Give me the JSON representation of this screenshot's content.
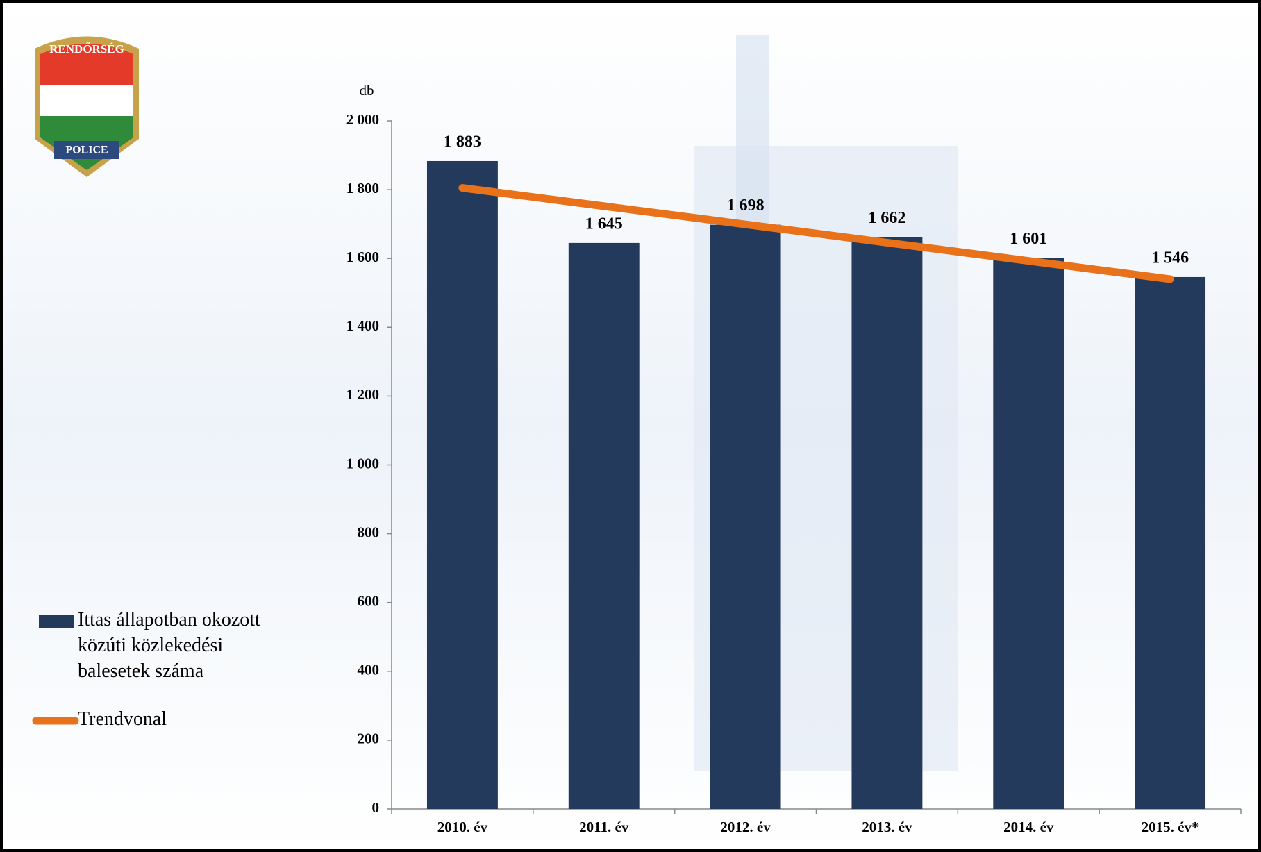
{
  "logo": {
    "top": "RENDŐRSÉG",
    "bottom": "POLICE"
  },
  "chart_data": {
    "type": "bar",
    "y_unit": "db",
    "categories": [
      "2010. év",
      "2011. év",
      "2012. év",
      "2013. év",
      "2014. év",
      "2015. év*"
    ],
    "series": [
      {
        "name": "Ittas állapotban okozott közúti közlekedési balesetek száma",
        "color": "#243a5c",
        "values": [
          1883,
          1645,
          1698,
          1662,
          1601,
          1546
        ],
        "value_labels": [
          "1 883",
          "1 645",
          "1 698",
          "1 662",
          "1 601",
          "1 546"
        ]
      },
      {
        "name": "Trendvonal",
        "type": "line",
        "color": "#e8711a",
        "values": [
          1805,
          1752,
          1699,
          1646,
          1593,
          1540
        ]
      }
    ],
    "ylim": [
      0,
      2000
    ],
    "yticks": [
      {
        "value": 0,
        "label": "0"
      },
      {
        "value": 200,
        "label": "200"
      },
      {
        "value": 400,
        "label": "400"
      },
      {
        "value": 600,
        "label": "600"
      },
      {
        "value": 800,
        "label": "800"
      },
      {
        "value": 1000,
        "label": "1 000"
      },
      {
        "value": 1200,
        "label": "1 200"
      },
      {
        "value": 1400,
        "label": "1 400"
      },
      {
        "value": 1600,
        "label": "1 600"
      },
      {
        "value": 1800,
        "label": "1 800"
      },
      {
        "value": 2000,
        "label": "2 000"
      }
    ],
    "legend": "left"
  }
}
